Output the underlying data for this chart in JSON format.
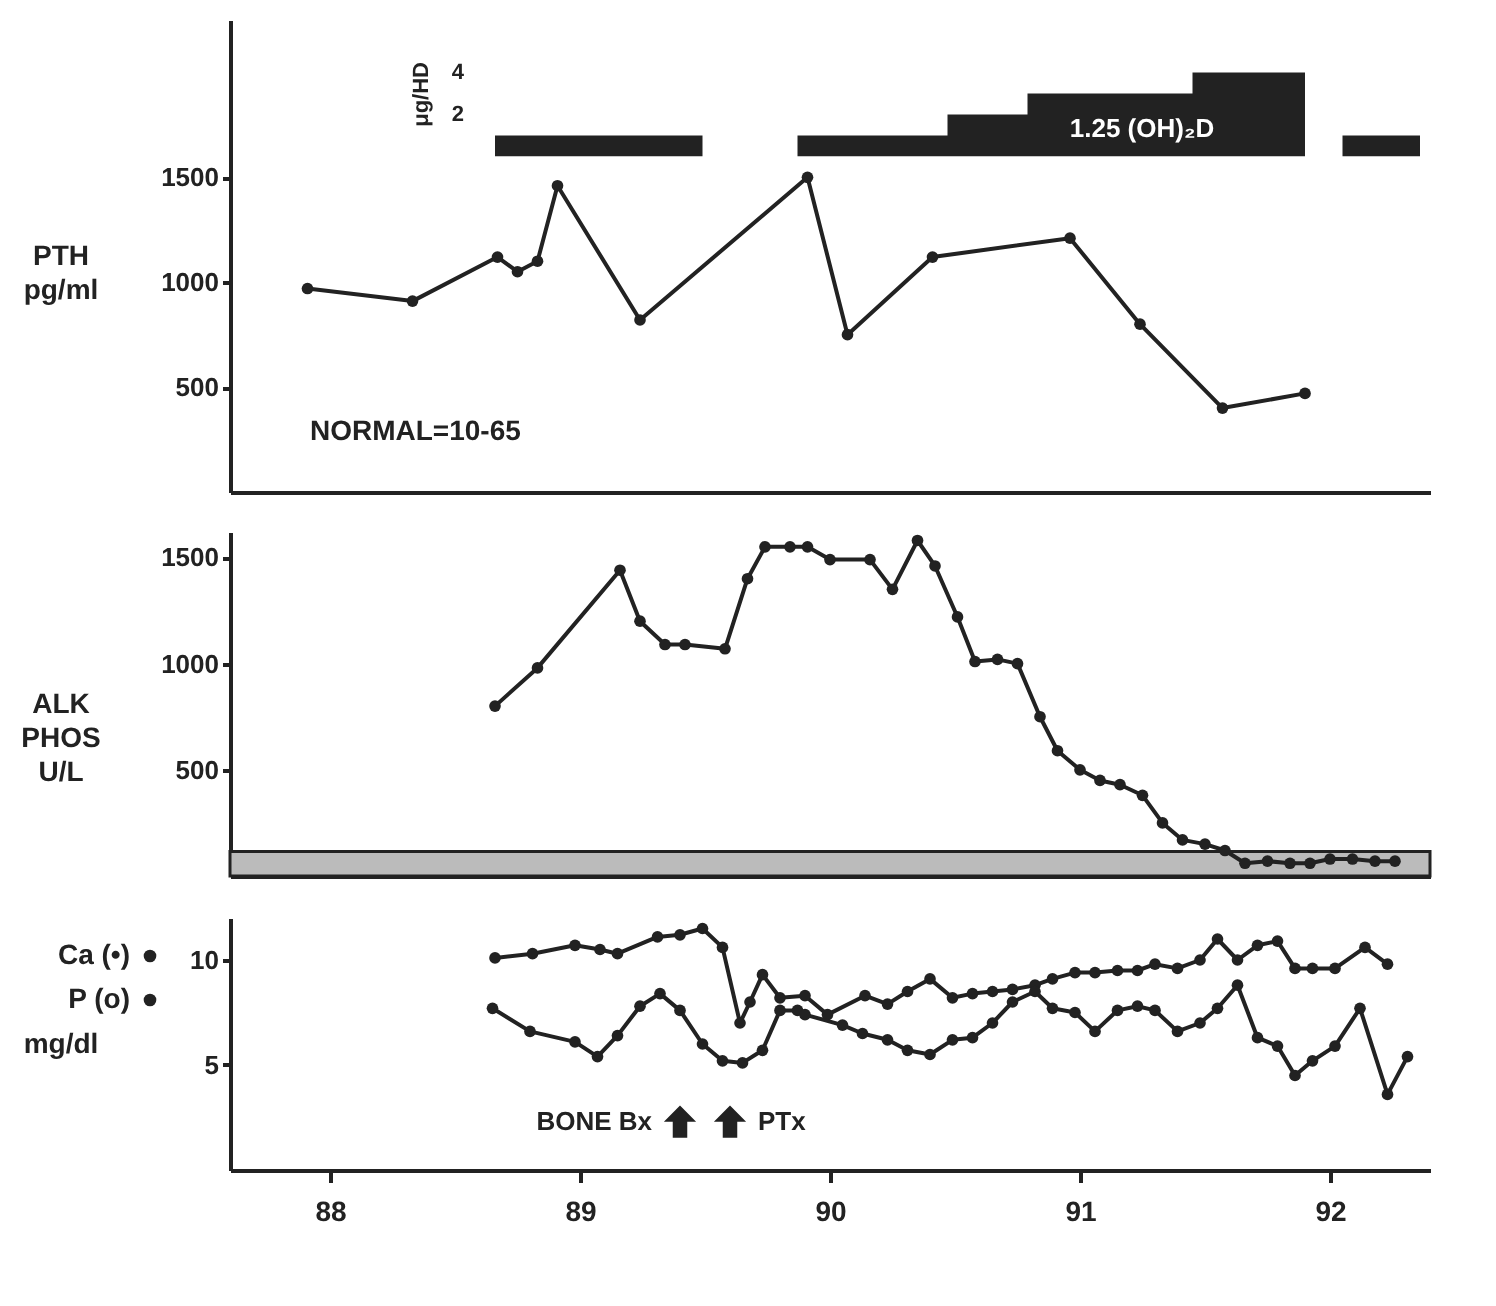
{
  "chart_data": [
    {
      "type": "line",
      "ylabel": "PTH pg/ml",
      "y2label": "μg/HD",
      "marker": "circle",
      "xlim": [
        87.6,
        92.4
      ],
      "ylim": [
        0,
        2250
      ],
      "yticks": [
        500,
        1000,
        1500
      ],
      "y2lim": [
        -16,
        6.5
      ],
      "y2ticks": [
        2,
        4
      ],
      "tick_labels": "y",
      "annotations": [
        "NORMAL=10-65",
        "1.25 (OH)₂D"
      ],
      "series": [
        {
          "color": "#222222",
          "x": [
            87.91,
            88.33,
            88.67,
            88.75,
            88.83,
            88.91,
            89.24,
            89.91,
            90.07,
            90.41,
            90.96,
            91.24,
            91.57,
            91.9
          ],
          "values": [
            970,
            910,
            1120,
            1050,
            1100,
            1460,
            820,
            1500,
            750,
            1120,
            1210,
            800,
            400,
            470
          ]
        },
        {
          "type": "area",
          "axis": "y2",
          "marker": "none",
          "color": "#222222",
          "x": [
            88.66,
            88.66,
            89.49,
            89.49,
            89.87,
            89.87,
            90.47,
            90.47,
            90.79,
            90.79,
            91.45,
            91.45,
            91.9,
            91.9,
            92.05,
            92.05,
            92.36,
            92.36
          ],
          "values": [
            0,
            1,
            1,
            0,
            0,
            1,
            1,
            2,
            2,
            3,
            3,
            4,
            4,
            0,
            0,
            1,
            1,
            0
          ]
        }
      ]
    },
    {
      "type": "line",
      "ylabel": "ALK PHOS U/L",
      "marker": "circle",
      "xlim": [
        87.6,
        92.4
      ],
      "ylim": [
        0,
        1620
      ],
      "yticks": [
        500,
        1000,
        1500
      ],
      "tick_labels": "y",
      "bands": [
        {
          "axis": "y",
          "from": 0,
          "to": 115,
          "color": "#bbbbbb"
        }
      ],
      "series": [
        {
          "color": "#222222",
          "x": [
            88.66,
            88.83,
            89.16,
            89.24,
            89.34,
            89.42,
            89.58,
            89.67,
            89.74,
            89.84,
            89.91,
            90.0,
            90.16,
            90.25,
            90.35,
            90.42,
            90.51,
            90.58,
            90.67,
            90.75,
            90.84,
            90.91,
            91.0,
            91.08,
            91.16,
            91.25,
            91.33,
            91.41,
            91.5,
            91.58,
            91.66,
            91.75,
            91.84,
            91.92,
            92.0,
            92.09,
            92.18,
            92.26
          ],
          "values": [
            800,
            980,
            1440,
            1200,
            1090,
            1090,
            1070,
            1400,
            1550,
            1550,
            1550,
            1490,
            1490,
            1350,
            1580,
            1460,
            1220,
            1010,
            1020,
            1000,
            750,
            590,
            500,
            450,
            430,
            380,
            250,
            170,
            150,
            120,
            60,
            70,
            60,
            60,
            80,
            80,
            70,
            70
          ]
        }
      ]
    },
    {
      "type": "line",
      "ylabel": "mg/dl",
      "marker": "circle",
      "xlim": [
        87.6,
        92.4
      ],
      "ylim": [
        0,
        12
      ],
      "yticks": [
        5,
        10
      ],
      "xticks": [
        88,
        89,
        90,
        91,
        92
      ],
      "legend": "left",
      "annotations": [
        {
          "text": "BONE Bx",
          "x": 89.4,
          "y": 2.3
        },
        {
          "text": "PTx",
          "x": 89.6,
          "y": 2.3
        }
      ],
      "series": [
        {
          "name": "Ca (•)",
          "color": "#222222",
          "x": [
            88.66,
            88.81,
            88.98,
            89.08,
            89.15,
            89.31,
            89.4,
            89.49,
            89.57,
            89.64,
            89.68,
            89.73,
            89.8,
            89.9,
            89.99,
            90.14,
            90.23,
            90.31,
            90.4,
            90.49,
            90.57,
            90.65,
            90.73,
            90.82,
            90.89,
            90.98,
            91.06,
            91.15,
            91.23,
            91.3,
            91.39,
            91.48,
            91.55,
            91.63,
            91.71,
            91.79,
            91.86,
            91.93,
            92.02,
            92.14,
            92.23
          ],
          "values": [
            10.1,
            10.3,
            10.7,
            10.5,
            10.3,
            11.1,
            11.2,
            11.5,
            10.6,
            7.0,
            8.0,
            9.3,
            8.2,
            8.3,
            7.4,
            8.3,
            7.9,
            8.5,
            9.1,
            8.2,
            8.4,
            8.5,
            8.6,
            8.8,
            9.1,
            9.4,
            9.4,
            9.5,
            9.5,
            9.8,
            9.6,
            10.0,
            11.0,
            10.0,
            10.7,
            10.9,
            9.6,
            9.6,
            9.6,
            10.6,
            9.8
          ]
        },
        {
          "name": "P (o)",
          "color": "#222222",
          "x": [
            88.65,
            88.8,
            88.98,
            89.07,
            89.15,
            89.24,
            89.32,
            89.4,
            89.49,
            89.57,
            89.65,
            89.73,
            89.8,
            89.87,
            89.9,
            90.05,
            90.13,
            90.23,
            90.31,
            90.4,
            90.49,
            90.57,
            90.65,
            90.73,
            90.82,
            90.89,
            90.98,
            91.06,
            91.15,
            91.23,
            91.3,
            91.39,
            91.48,
            91.55,
            91.63,
            91.71,
            91.79,
            91.86,
            91.93,
            92.02,
            92.12,
            92.23,
            92.31
          ],
          "values": [
            7.7,
            6.6,
            6.1,
            5.4,
            6.4,
            7.8,
            8.4,
            7.6,
            6.0,
            5.2,
            5.1,
            5.7,
            7.6,
            7.6,
            7.4,
            6.9,
            6.5,
            6.2,
            5.7,
            5.5,
            6.2,
            6.3,
            7.0,
            8.0,
            8.5,
            7.7,
            7.5,
            6.6,
            7.6,
            7.8,
            7.6,
            6.6,
            7.0,
            7.7,
            8.8,
            6.3,
            5.9,
            4.5,
            5.2,
            5.9,
            7.7,
            3.6,
            5.4
          ]
        }
      ]
    }
  ]
}
